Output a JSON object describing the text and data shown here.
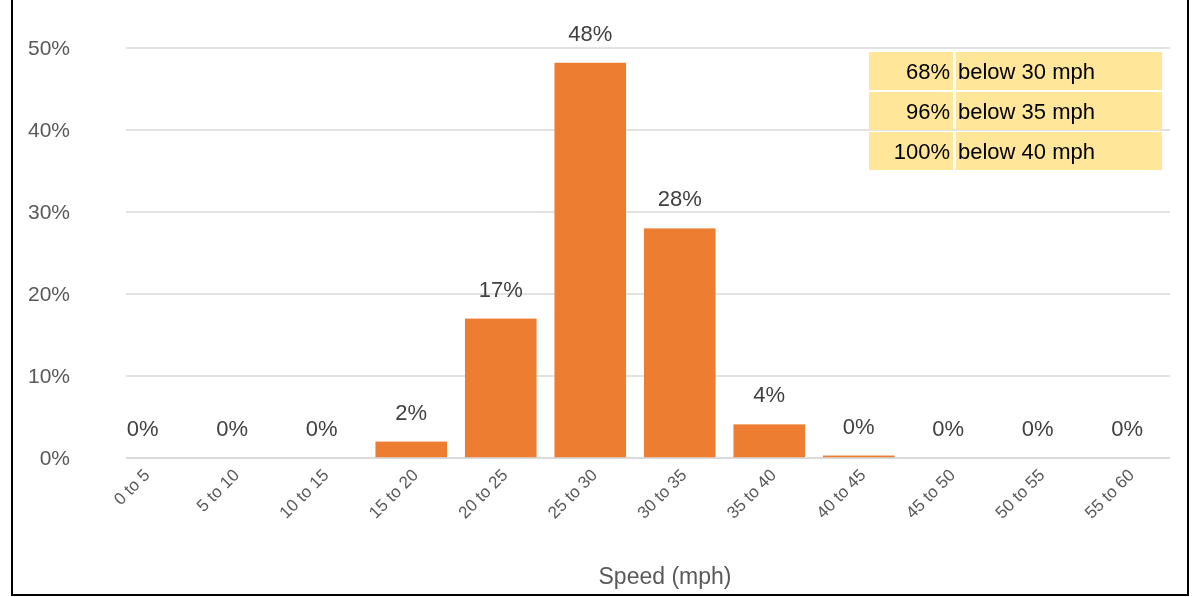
{
  "chart_data": {
    "type": "bar",
    "xlabel": "Speed (mph)",
    "categories": [
      "0 to 5",
      "5 to 10",
      "10 to 15",
      "15 to 20",
      "20 to 25",
      "25 to 30",
      "30 to 35",
      "35 to 40",
      "40 to 45",
      "45 to 50",
      "50 to 55",
      "55 to 60"
    ],
    "values": [
      0,
      0,
      0,
      2.0,
      17.0,
      48.2,
      28.0,
      4.1,
      0.3,
      0,
      0,
      0
    ],
    "value_labels": [
      "0%",
      "0%",
      "0%",
      "2%",
      "17%",
      "48%",
      "28%",
      "4%",
      "0%",
      "0%",
      "0%",
      "0%"
    ],
    "color": "#ed7d31",
    "ylim": [
      0,
      50
    ],
    "yticks": [
      {
        "value": 0,
        "label": "0%"
      },
      {
        "value": 10,
        "label": "10%"
      },
      {
        "value": 20,
        "label": "20%"
      },
      {
        "value": 30,
        "label": "30%"
      },
      {
        "value": 40,
        "label": "40%"
      },
      {
        "value": 50,
        "label": "50%"
      }
    ],
    "grid": "y",
    "annotations": [
      "68% below 30 mph",
      "96% below 35 mph",
      "100% below 40 mph"
    ]
  }
}
